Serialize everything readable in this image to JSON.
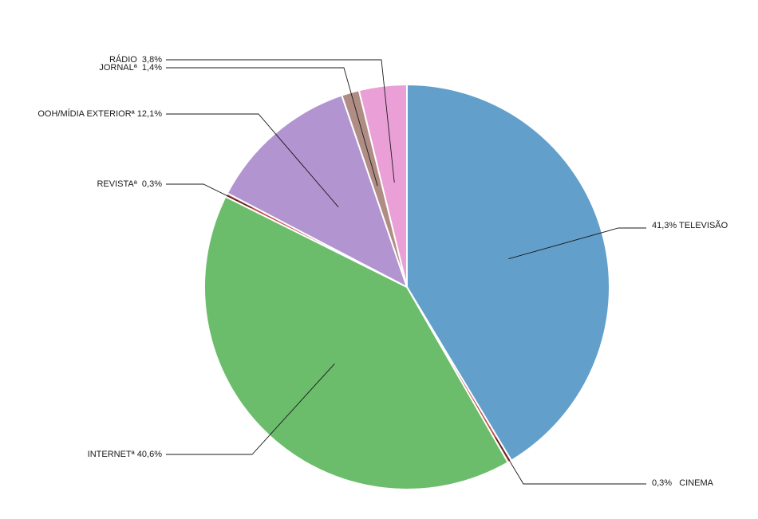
{
  "chart_data": {
    "type": "pie",
    "title": "",
    "slices": [
      {
        "name": "TELEVISÃO",
        "value": 41.3,
        "label": "41,3% TELEVISÃO",
        "color": "#62a0cb"
      },
      {
        "name": "CINEMA",
        "value": 0.3,
        "label": "0,3%   CINEMA",
        "color": "#c0504d"
      },
      {
        "name": "INTERNETª",
        "value": 40.6,
        "label": "INTERNETª 40,6%",
        "color": "#6bbd6b"
      },
      {
        "name": "REVISTAª",
        "value": 0.3,
        "label": "REVISTAª  0,3%",
        "color": "#c0504d"
      },
      {
        "name": "OOH/MÍDIA EXTERIORª",
        "value": 12.1,
        "label": "OOH/MÍDIA EXTERIORª 12,1%",
        "color": "#b294d1"
      },
      {
        "name": "JORNALª",
        "value": 1.4,
        "label": "JORNALª  1,4%",
        "color": "#b08d84"
      },
      {
        "name": "RÁDIO",
        "value": 3.8,
        "label": "RÁDIO  3,8%",
        "color": "#eaa0d6"
      }
    ],
    "start_angle_deg": 0,
    "direction": "clockwise",
    "legend": "none"
  }
}
